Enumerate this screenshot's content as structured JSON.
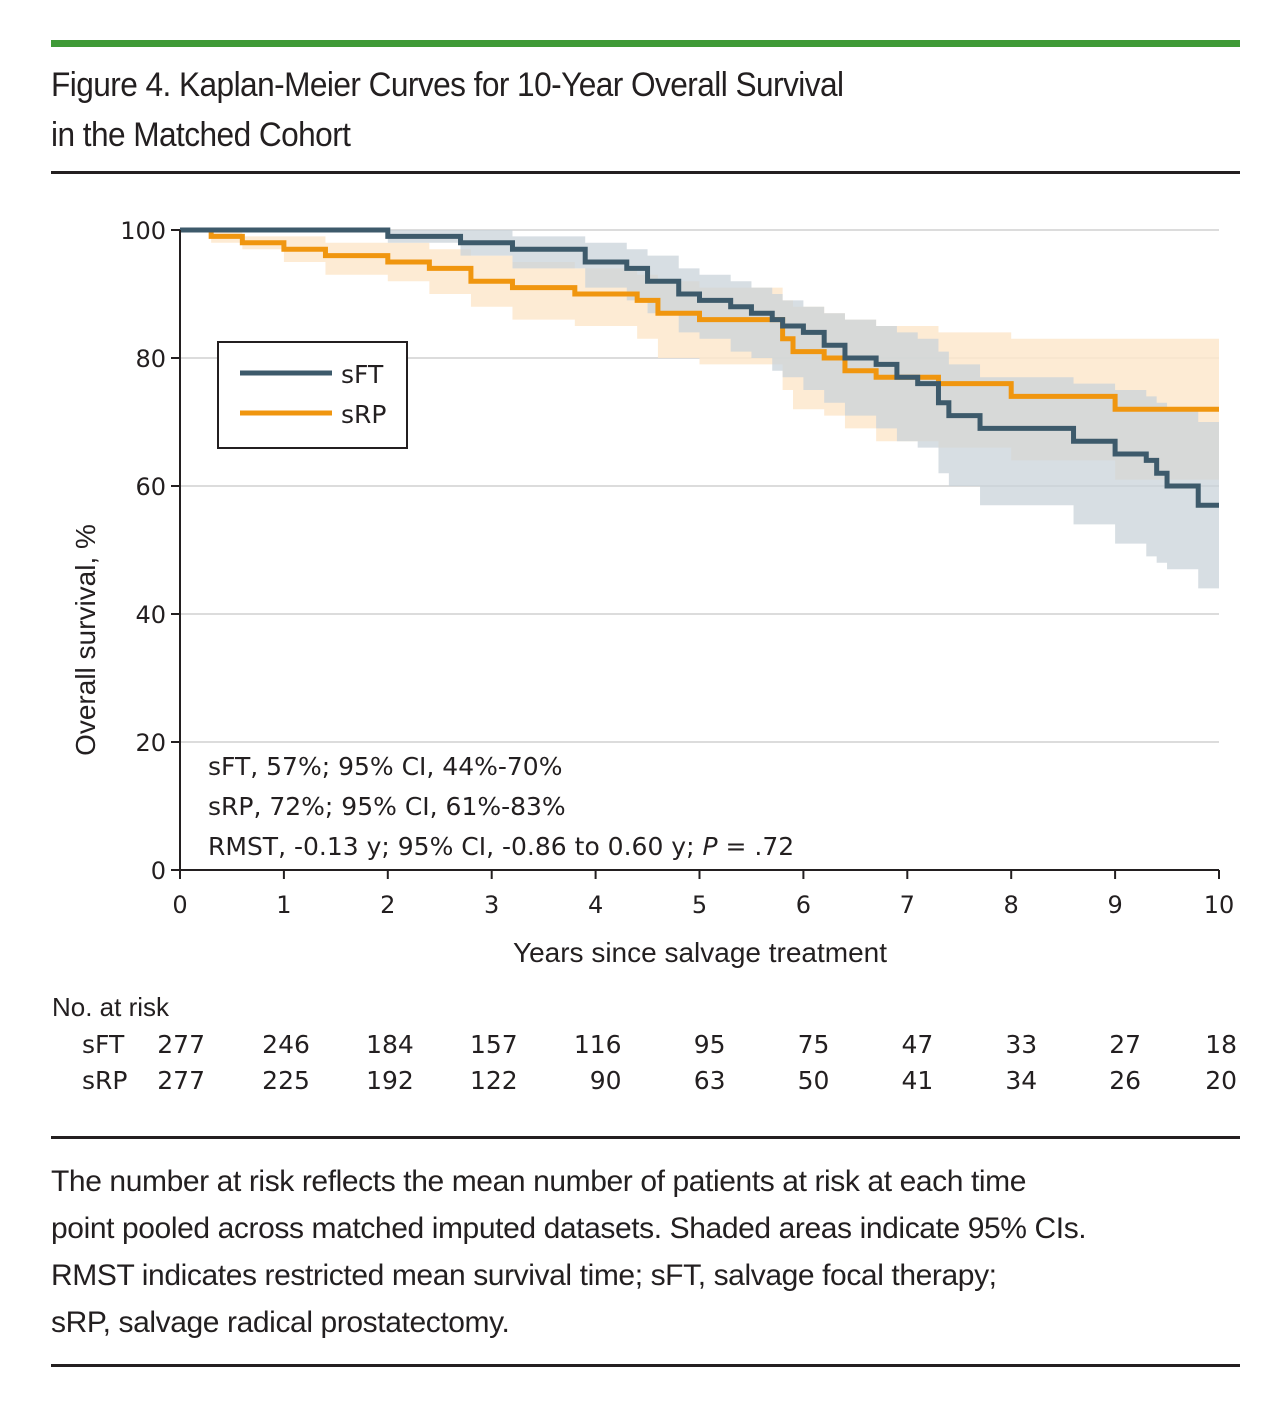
{
  "figure": {
    "title_line1": "Figure 4. Kaplan-Meier Curves for 10-Year Overall Survival",
    "title_line2": "in the Matched Cohort",
    "accent_color": "#3f9a37",
    "caption_lines": [
      "The number at risk reflects the mean number of patients at risk at each time",
      "point pooled across matched imputed datasets. Shaded areas indicate 95% CIs.",
      "RMST indicates restricted mean survival time; sFT, salvage focal therapy;",
      "sRP, salvage radical prostatectomy."
    ]
  },
  "chart_data": {
    "type": "line",
    "subtype": "kaplan-meier-step",
    "xlabel": "Years since salvage treatment",
    "ylabel": "Overall survival, %",
    "xlim": [
      0,
      10
    ],
    "ylim": [
      0,
      100
    ],
    "x_ticks": [
      "0",
      "1",
      "2",
      "3",
      "4",
      "5",
      "6",
      "7",
      "8",
      "9",
      "10"
    ],
    "y_ticks": [
      "0",
      "20",
      "40",
      "60",
      "80",
      "100"
    ],
    "grid": "horizontal",
    "legend_position": "upper-left",
    "series": [
      {
        "name": "sFT",
        "color": "#3d5a6b",
        "ci_color": "#c9d3da",
        "steps": [
          [
            0,
            100
          ],
          [
            2.0,
            99
          ],
          [
            2.7,
            98
          ],
          [
            3.2,
            97
          ],
          [
            3.9,
            95
          ],
          [
            4.3,
            94
          ],
          [
            4.5,
            92
          ],
          [
            4.8,
            90
          ],
          [
            5.0,
            89
          ],
          [
            5.3,
            88
          ],
          [
            5.5,
            87
          ],
          [
            5.7,
            86
          ],
          [
            5.8,
            85
          ],
          [
            6.0,
            84
          ],
          [
            6.2,
            82
          ],
          [
            6.4,
            80
          ],
          [
            6.7,
            79
          ],
          [
            6.9,
            77
          ],
          [
            7.1,
            76
          ],
          [
            7.3,
            73
          ],
          [
            7.4,
            71
          ],
          [
            7.7,
            69
          ],
          [
            8.6,
            67
          ],
          [
            9.0,
            65
          ],
          [
            9.3,
            64
          ],
          [
            9.4,
            62
          ],
          [
            9.5,
            60
          ],
          [
            9.8,
            57
          ],
          [
            10,
            57
          ]
        ],
        "ci_lower": [
          [
            0,
            100
          ],
          [
            2.0,
            98
          ],
          [
            2.7,
            96
          ],
          [
            3.2,
            94
          ],
          [
            3.9,
            91
          ],
          [
            4.3,
            89
          ],
          [
            4.5,
            87
          ],
          [
            4.8,
            84
          ],
          [
            5.0,
            83
          ],
          [
            5.3,
            81
          ],
          [
            5.5,
            80
          ],
          [
            5.7,
            78
          ],
          [
            5.8,
            77
          ],
          [
            6.0,
            75
          ],
          [
            6.2,
            73
          ],
          [
            6.4,
            71
          ],
          [
            6.7,
            69
          ],
          [
            6.9,
            67
          ],
          [
            7.1,
            66
          ],
          [
            7.3,
            62
          ],
          [
            7.4,
            60
          ],
          [
            7.7,
            57
          ],
          [
            8.6,
            54
          ],
          [
            9.0,
            51
          ],
          [
            9.3,
            49
          ],
          [
            9.4,
            48
          ],
          [
            9.5,
            47
          ],
          [
            9.8,
            44
          ],
          [
            10,
            44
          ]
        ],
        "ci_upper": [
          [
            0,
            100
          ],
          [
            2.0,
            100
          ],
          [
            2.7,
            100
          ],
          [
            3.2,
            99
          ],
          [
            3.9,
            98
          ],
          [
            4.3,
            97
          ],
          [
            4.5,
            96
          ],
          [
            4.8,
            94
          ],
          [
            5.0,
            93
          ],
          [
            5.3,
            92
          ],
          [
            5.5,
            91
          ],
          [
            5.7,
            90
          ],
          [
            5.8,
            89
          ],
          [
            6.0,
            88
          ],
          [
            6.2,
            87
          ],
          [
            6.4,
            86
          ],
          [
            6.7,
            85
          ],
          [
            6.9,
            84
          ],
          [
            7.1,
            83
          ],
          [
            7.3,
            81
          ],
          [
            7.4,
            79
          ],
          [
            7.7,
            77
          ],
          [
            8.6,
            76
          ],
          [
            9.0,
            75
          ],
          [
            9.3,
            74
          ],
          [
            9.4,
            73
          ],
          [
            9.5,
            72
          ],
          [
            9.8,
            70
          ],
          [
            10,
            70
          ]
        ],
        "summary": "sFT, 57%; 95% CI, 44%-70%"
      },
      {
        "name": "sRP",
        "color": "#f0960f",
        "ci_color": "#fde8cc",
        "steps": [
          [
            0,
            100
          ],
          [
            0.3,
            99
          ],
          [
            0.6,
            98
          ],
          [
            1.0,
            97
          ],
          [
            1.4,
            96
          ],
          [
            2.0,
            95
          ],
          [
            2.4,
            94
          ],
          [
            2.8,
            92
          ],
          [
            3.2,
            91
          ],
          [
            3.8,
            90
          ],
          [
            4.4,
            89
          ],
          [
            4.6,
            87
          ],
          [
            5.0,
            86
          ],
          [
            5.8,
            83
          ],
          [
            5.9,
            81
          ],
          [
            6.2,
            80
          ],
          [
            6.4,
            78
          ],
          [
            6.7,
            77
          ],
          [
            7.3,
            76
          ],
          [
            8.0,
            74
          ],
          [
            9.0,
            72
          ],
          [
            10,
            72
          ]
        ],
        "ci_lower": [
          [
            0,
            100
          ],
          [
            0.3,
            98
          ],
          [
            0.6,
            97
          ],
          [
            1.0,
            95
          ],
          [
            1.4,
            93
          ],
          [
            2.0,
            92
          ],
          [
            2.4,
            90
          ],
          [
            2.8,
            88
          ],
          [
            3.2,
            86
          ],
          [
            3.8,
            85
          ],
          [
            4.4,
            83
          ],
          [
            4.6,
            80
          ],
          [
            5.0,
            79
          ],
          [
            5.8,
            75
          ],
          [
            5.9,
            72
          ],
          [
            6.2,
            71
          ],
          [
            6.4,
            69
          ],
          [
            6.7,
            67
          ],
          [
            7.3,
            66
          ],
          [
            8.0,
            64
          ],
          [
            9.0,
            61
          ],
          [
            10,
            61
          ]
        ],
        "ci_upper": [
          [
            0,
            100
          ],
          [
            0.3,
            100
          ],
          [
            0.6,
            99
          ],
          [
            1.0,
            99
          ],
          [
            1.4,
            98
          ],
          [
            2.0,
            98
          ],
          [
            2.4,
            97
          ],
          [
            2.8,
            96
          ],
          [
            3.2,
            95
          ],
          [
            3.8,
            94
          ],
          [
            4.4,
            93
          ],
          [
            4.6,
            92
          ],
          [
            5.0,
            91
          ],
          [
            5.8,
            89
          ],
          [
            5.9,
            88
          ],
          [
            6.2,
            87
          ],
          [
            6.4,
            86
          ],
          [
            6.7,
            85
          ],
          [
            7.3,
            84
          ],
          [
            8.0,
            83
          ],
          [
            9.0,
            83
          ],
          [
            10,
            83
          ]
        ],
        "summary": "sRP, 72%; 95% CI, 61%-83%"
      }
    ],
    "annotations": [
      "sFT, 57%; 95% CI, 44%-70%",
      "sRP, 72%; 95% CI, 61%-83%",
      "RMST, -0.13 y; 95% CI, -0.86 to 0.60 y; "
    ],
    "annotation_p_label": "P",
    "annotation_p_value": " = .72",
    "legend": [
      "sFT",
      "sRP"
    ]
  },
  "risk_table": {
    "title": "No. at risk",
    "rows": [
      {
        "label": "sFT",
        "values": [
          "277",
          "246",
          "184",
          "157",
          "116",
          "95",
          "75",
          "47",
          "33",
          "27",
          "18"
        ]
      },
      {
        "label": "sRP",
        "values": [
          "277",
          "225",
          "192",
          "122",
          "90",
          "63",
          "50",
          "41",
          "34",
          "26",
          "20"
        ]
      }
    ]
  }
}
